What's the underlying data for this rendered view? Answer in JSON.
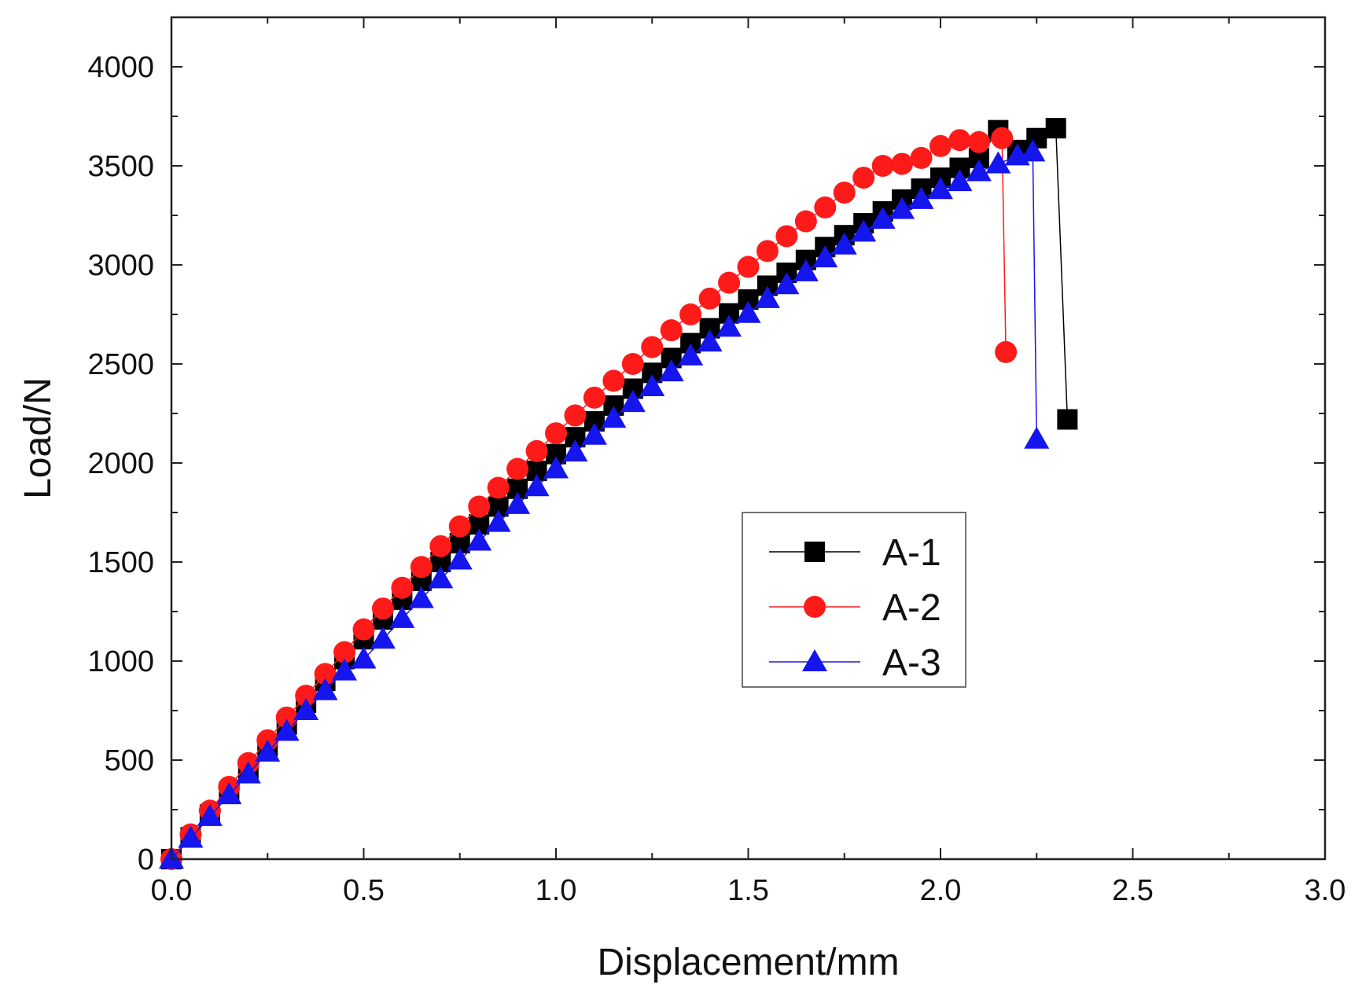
{
  "chart_data": {
    "type": "line",
    "title": "",
    "xlabel": "Displacement/mm",
    "ylabel": "Load/N",
    "xlim": [
      0,
      3.0
    ],
    "ylim": [
      0,
      4250
    ],
    "x_ticks": [
      0,
      0.5,
      1.0,
      1.5,
      2.0,
      2.5,
      3.0
    ],
    "x_tick_labels": [
      "0.0",
      "0.5",
      "1.0",
      "1.5",
      "2.0",
      "2.5",
      "3.0"
    ],
    "y_ticks": [
      0,
      500,
      1000,
      1500,
      2000,
      2500,
      3000,
      3500,
      4000
    ],
    "y_tick_labels": [
      "0",
      "500",
      "1000",
      "1500",
      "2000",
      "2500",
      "3000",
      "3500",
      "4000"
    ],
    "grid": false,
    "legend_position": "center-right",
    "series": [
      {
        "name": "A-1",
        "color": "#000000",
        "marker": "square",
        "x": [
          0.0,
          0.05,
          0.1,
          0.15,
          0.2,
          0.25,
          0.3,
          0.35,
          0.4,
          0.45,
          0.5,
          0.55,
          0.6,
          0.65,
          0.7,
          0.75,
          0.8,
          0.85,
          0.9,
          0.95,
          1.0,
          1.05,
          1.1,
          1.15,
          1.2,
          1.25,
          1.3,
          1.35,
          1.4,
          1.45,
          1.5,
          1.55,
          1.6,
          1.65,
          1.7,
          1.75,
          1.8,
          1.85,
          1.9,
          1.95,
          2.0,
          2.05,
          2.1,
          2.15,
          2.2,
          2.25,
          2.3,
          2.33
        ],
        "y": [
          0,
          110,
          225,
          340,
          455,
          570,
          680,
          790,
          900,
          1010,
          1110,
          1210,
          1310,
          1405,
          1500,
          1595,
          1690,
          1780,
          1870,
          1960,
          2045,
          2130,
          2210,
          2290,
          2375,
          2455,
          2530,
          2605,
          2680,
          2755,
          2825,
          2895,
          2960,
          3025,
          3090,
          3150,
          3210,
          3270,
          3330,
          3385,
          3440,
          3490,
          3540,
          3680,
          3580,
          3640,
          3690,
          2220
        ]
      },
      {
        "name": "A-2",
        "color": "#ff1a1a",
        "marker": "circle",
        "x": [
          0.0,
          0.05,
          0.1,
          0.15,
          0.2,
          0.25,
          0.3,
          0.35,
          0.4,
          0.45,
          0.5,
          0.55,
          0.6,
          0.65,
          0.7,
          0.75,
          0.8,
          0.85,
          0.9,
          0.95,
          1.0,
          1.05,
          1.1,
          1.15,
          1.2,
          1.25,
          1.3,
          1.35,
          1.4,
          1.45,
          1.5,
          1.55,
          1.6,
          1.65,
          1.7,
          1.75,
          1.8,
          1.85,
          1.9,
          1.95,
          2.0,
          2.05,
          2.1,
          2.16,
          2.17
        ],
        "y": [
          0,
          125,
          245,
          365,
          485,
          600,
          715,
          825,
          935,
          1045,
          1160,
          1265,
          1370,
          1475,
          1580,
          1680,
          1780,
          1875,
          1970,
          2060,
          2150,
          2240,
          2330,
          2415,
          2500,
          2585,
          2670,
          2750,
          2830,
          2910,
          2990,
          3070,
          3145,
          3220,
          3290,
          3365,
          3440,
          3500,
          3510,
          3540,
          3600,
          3630,
          3620,
          3640,
          2560
        ]
      },
      {
        "name": "A-3",
        "color": "#1515ee",
        "marker": "triangle",
        "x": [
          0.0,
          0.05,
          0.1,
          0.15,
          0.2,
          0.25,
          0.3,
          0.35,
          0.4,
          0.45,
          0.5,
          0.55,
          0.6,
          0.65,
          0.7,
          0.75,
          0.8,
          0.85,
          0.9,
          0.95,
          1.0,
          1.05,
          1.1,
          1.15,
          1.2,
          1.25,
          1.3,
          1.35,
          1.4,
          1.45,
          1.5,
          1.55,
          1.6,
          1.65,
          1.7,
          1.75,
          1.8,
          1.85,
          1.9,
          1.95,
          2.0,
          2.05,
          2.1,
          2.15,
          2.2,
          2.24,
          2.25
        ],
        "y": [
          0,
          105,
          215,
          325,
          430,
          540,
          645,
          750,
          850,
          950,
          1010,
          1110,
          1215,
          1315,
          1415,
          1510,
          1605,
          1700,
          1790,
          1880,
          1970,
          2055,
          2140,
          2225,
          2305,
          2385,
          2460,
          2540,
          2610,
          2685,
          2755,
          2830,
          2900,
          2965,
          3035,
          3100,
          3165,
          3230,
          3280,
          3330,
          3380,
          3420,
          3470,
          3510,
          3550,
          3570,
          2120
        ]
      }
    ]
  }
}
